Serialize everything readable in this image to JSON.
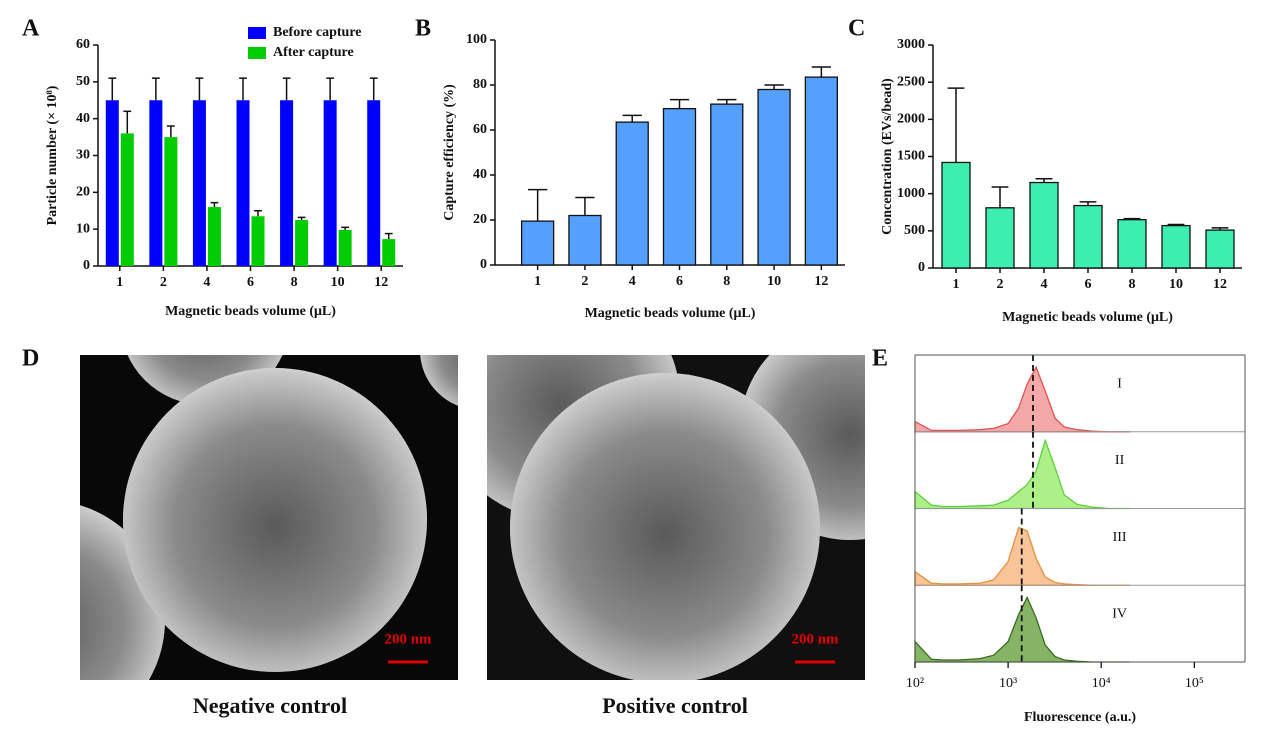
{
  "panel_letters": [
    "A",
    "B",
    "C",
    "D",
    "E"
  ],
  "chart_data": [
    {
      "type": "bar",
      "categories": [
        "1",
        "2",
        "4",
        "6",
        "8",
        "10",
        "12"
      ],
      "x_label": "Magnetic beads volume (μL)",
      "y_label": "Particle number (× 10⁸)",
      "ylim": [
        0,
        60
      ],
      "yticks": [
        0,
        10,
        20,
        30,
        40,
        50,
        60
      ],
      "legend": "top-right",
      "series": [
        {
          "name": "Before capture",
          "color": "#0000ff",
          "values": [
            45,
            45,
            45,
            45,
            45,
            45,
            45
          ],
          "errors": [
            6,
            6,
            6,
            6,
            6,
            6,
            6
          ]
        },
        {
          "name": "After capture",
          "color": "#00cc00",
          "values": [
            36,
            35,
            16,
            13.5,
            12.5,
            9.8,
            7.3
          ],
          "errors": [
            6,
            3,
            1.2,
            1.5,
            0.7,
            0.7,
            1.5
          ]
        }
      ]
    },
    {
      "type": "bar",
      "categories": [
        "1",
        "2",
        "4",
        "6",
        "8",
        "10",
        "12"
      ],
      "x_label": "Magnetic beads volume (μL)",
      "y_label": "Capture efficiency (%)",
      "ylim": [
        0,
        100
      ],
      "yticks": [
        0,
        20,
        40,
        60,
        80,
        100
      ],
      "color": "#55a0ff",
      "values": [
        19.5,
        22,
        63.5,
        69.5,
        71.5,
        78,
        83.5
      ],
      "errors": [
        14,
        8,
        3,
        4,
        2,
        2,
        4.5
      ]
    },
    {
      "type": "bar",
      "categories": [
        "1",
        "2",
        "4",
        "6",
        "8",
        "10",
        "12"
      ],
      "x_label": "Magnetic beads volume (μL)",
      "y_label": "Concentration (EVs/bead)",
      "ylim": [
        0,
        3000
      ],
      "yticks": [
        0,
        500,
        1000,
        1500,
        2000,
        2500,
        3000
      ],
      "color": "#3cefb0",
      "values": [
        1420,
        810,
        1150,
        840,
        650,
        570,
        510
      ],
      "errors": [
        1000,
        280,
        50,
        50,
        15,
        15,
        30
      ]
    },
    {
      "type": "density",
      "x_label": "Fluorescence (a.u.)",
      "log_x": true,
      "xlim": [
        100,
        350000
      ],
      "xticks": [
        {
          "value": 100,
          "label": "10²"
        },
        {
          "value": 1000,
          "label": "10³"
        },
        {
          "value": 10000,
          "label": "10⁴"
        },
        {
          "value": 100000,
          "label": "10⁵"
        }
      ],
      "ylim": [
        0,
        1.1
      ],
      "x": [
        100,
        150,
        200,
        300,
        500,
        700,
        1000,
        1300,
        1600,
        2000,
        2500,
        3200,
        4000,
        5500,
        8000,
        12000,
        20000
      ],
      "series": [
        {
          "name": "I",
          "color": "#e05050",
          "fill": "#f5a8a8",
          "ref": 1850,
          "values": [
            0.15,
            0.02,
            0.02,
            0.02,
            0.03,
            0.05,
            0.12,
            0.35,
            0.7,
            0.95,
            0.6,
            0.2,
            0.07,
            0.03,
            0.01,
            0,
            0
          ]
        },
        {
          "name": "II",
          "color": "#5cd03c",
          "fill": "#aef088",
          "ref": 1850,
          "values": [
            0.25,
            0.05,
            0.03,
            0.03,
            0.04,
            0.05,
            0.12,
            0.25,
            0.35,
            0.55,
            1.0,
            0.6,
            0.2,
            0.06,
            0.02,
            0,
            0
          ]
        },
        {
          "name": "III",
          "color": "#e89040",
          "fill": "#f8c498",
          "ref": 1400,
          "values": [
            0.2,
            0.03,
            0.02,
            0.02,
            0.03,
            0.08,
            0.35,
            0.85,
            0.8,
            0.4,
            0.12,
            0.04,
            0.02,
            0.01,
            0,
            0,
            0
          ]
        },
        {
          "name": "IV",
          "color": "#3a6a20",
          "fill": "#84b464",
          "ref": 1400,
          "values": [
            0.3,
            0.04,
            0.03,
            0.03,
            0.05,
            0.1,
            0.3,
            0.7,
            0.95,
            0.65,
            0.25,
            0.08,
            0.03,
            0.01,
            0,
            0,
            0
          ]
        }
      ]
    }
  ],
  "images": [
    {
      "caption": "Negative control",
      "scale_bar": "200 nm"
    },
    {
      "caption": "Positive control",
      "scale_bar": "200 nm"
    }
  ]
}
